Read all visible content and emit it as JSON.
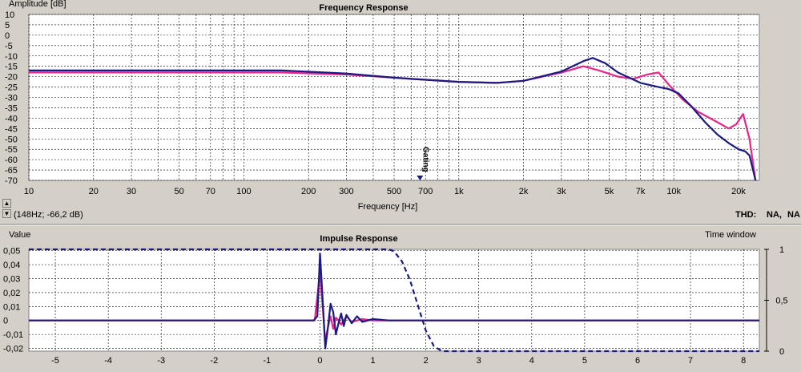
{
  "freq_panel": {
    "title": "Frequency Response",
    "y_axis_label": "Amplitude [dB]",
    "x_axis_label": "Frequency [Hz]",
    "cursor_readout": "(148Hz; -66,2 dB)",
    "marker_label": "Gating",
    "thd_label": "THD:",
    "thd_items": [
      {
        "text": "NA,",
        "color": "#1a1a80"
      },
      {
        "text": "NA",
        "color": "#e8258a"
      }
    ]
  },
  "impulse_panel": {
    "title": "Impulse Response",
    "y_axis_label": "Value",
    "right_axis_label": "Time window"
  },
  "colors": {
    "series_navy": "#1a1a80",
    "series_pink": "#e8258a",
    "grid": "#000000",
    "background": "#ffffff",
    "window_bg": "#d4d0c8"
  },
  "chart_data": [
    {
      "type": "line",
      "title": "Frequency Response",
      "xlabel": "Frequency [Hz]",
      "ylabel": "Amplitude [dB]",
      "xscale": "log",
      "xlim": [
        10,
        25000
      ],
      "ylim": [
        -70,
        10
      ],
      "x_ticks": [
        {
          "value": 10,
          "label": "10"
        },
        {
          "value": 20,
          "label": "20"
        },
        {
          "value": 30,
          "label": "30"
        },
        {
          "value": 50,
          "label": "50"
        },
        {
          "value": 70,
          "label": "70"
        },
        {
          "value": 100,
          "label": "100"
        },
        {
          "value": 200,
          "label": "200"
        },
        {
          "value": 300,
          "label": "300"
        },
        {
          "value": 500,
          "label": "500"
        },
        {
          "value": 700,
          "label": "700"
        },
        {
          "value": 1000,
          "label": "1k"
        },
        {
          "value": 2000,
          "label": "2k"
        },
        {
          "value": 3000,
          "label": "3k"
        },
        {
          "value": 5000,
          "label": "5k"
        },
        {
          "value": 7000,
          "label": "7k"
        },
        {
          "value": 10000,
          "label": "10k"
        },
        {
          "value": 20000,
          "label": "20k"
        }
      ],
      "y_ticks": [
        {
          "value": 10,
          "label": "10"
        },
        {
          "value": 5,
          "label": "5"
        },
        {
          "value": 0,
          "label": "0"
        },
        {
          "value": -5,
          "label": "-5"
        },
        {
          "value": -10,
          "label": "-10"
        },
        {
          "value": -15,
          "label": "-15"
        },
        {
          "value": -20,
          "label": "-20"
        },
        {
          "value": -25,
          "label": "-25"
        },
        {
          "value": -30,
          "label": "-30"
        },
        {
          "value": -35,
          "label": "-35"
        },
        {
          "value": -40,
          "label": "-40"
        },
        {
          "value": -45,
          "label": "-45"
        },
        {
          "value": -50,
          "label": "-50"
        },
        {
          "value": -55,
          "label": "-55"
        },
        {
          "value": -60,
          "label": "-60"
        },
        {
          "value": -65,
          "label": "-65"
        },
        {
          "value": -70,
          "label": "-70"
        }
      ],
      "grid": true,
      "marker_x": 660,
      "series": [
        {
          "color": "#e8258a",
          "points": [
            [
              10,
              -18
            ],
            [
              50,
              -18
            ],
            [
              150,
              -18
            ],
            [
              300,
              -19
            ],
            [
              500,
              -20.5
            ],
            [
              700,
              -21.5
            ],
            [
              1000,
              -22.5
            ],
            [
              1500,
              -23
            ],
            [
              2000,
              -22
            ],
            [
              3000,
              -18
            ],
            [
              3800,
              -15
            ],
            [
              4500,
              -17
            ],
            [
              5500,
              -20
            ],
            [
              6500,
              -21
            ],
            [
              7500,
              -19
            ],
            [
              8500,
              -18
            ],
            [
              9500,
              -24
            ],
            [
              11000,
              -31
            ],
            [
              13000,
              -37
            ],
            [
              16000,
              -42
            ],
            [
              18000,
              -45
            ],
            [
              19500,
              -43
            ],
            [
              21000,
              -38
            ],
            [
              22500,
              -50
            ],
            [
              24000,
              -70
            ]
          ]
        },
        {
          "color": "#1a1a80",
          "points": [
            [
              10,
              -17
            ],
            [
              50,
              -17
            ],
            [
              150,
              -17
            ],
            [
              300,
              -18.5
            ],
            [
              500,
              -20.5
            ],
            [
              700,
              -21.5
            ],
            [
              1000,
              -22.5
            ],
            [
              1500,
              -23
            ],
            [
              2000,
              -22
            ],
            [
              3000,
              -17.5
            ],
            [
              3800,
              -12.5
            ],
            [
              4200,
              -11
            ],
            [
              4800,
              -13.5
            ],
            [
              5500,
              -18
            ],
            [
              7000,
              -23
            ],
            [
              8500,
              -25
            ],
            [
              9500,
              -26
            ],
            [
              10500,
              -28
            ],
            [
              12000,
              -34
            ],
            [
              14000,
              -42
            ],
            [
              16000,
              -48
            ],
            [
              18000,
              -52
            ],
            [
              20000,
              -55
            ],
            [
              21500,
              -56
            ],
            [
              22500,
              -58
            ],
            [
              24000,
              -70
            ]
          ]
        }
      ]
    },
    {
      "type": "line",
      "title": "Impulse Response",
      "ylabel": "Value",
      "y2label": "Time window",
      "xlim": [
        -5.5,
        8.3
      ],
      "ylim": [
        -0.022,
        0.051
      ],
      "y2lim": [
        0,
        1
      ],
      "x_ticks": [
        -5,
        -4,
        -3,
        -2,
        -1,
        0,
        1,
        2,
        3,
        4,
        5,
        6,
        7,
        8
      ],
      "y_ticks": [
        {
          "value": 0.05,
          "label": "0,05"
        },
        {
          "value": 0.04,
          "label": "0,04"
        },
        {
          "value": 0.03,
          "label": "0,03"
        },
        {
          "value": 0.02,
          "label": "0,02"
        },
        {
          "value": 0.01,
          "label": "0,01"
        },
        {
          "value": 0,
          "label": "0"
        },
        {
          "value": -0.01,
          "label": "-0,01"
        },
        {
          "value": -0.02,
          "label": "-0,02"
        }
      ],
      "y2_ticks": [
        {
          "value": 1,
          "label": "1"
        },
        {
          "value": 0.5,
          "label": "0,5"
        },
        {
          "value": 0,
          "label": "0"
        }
      ],
      "grid": true,
      "series": [
        {
          "color": "#e8258a",
          "points": [
            [
              -5.5,
              0
            ],
            [
              -0.1,
              0
            ],
            [
              0,
              0.035
            ],
            [
              0.05,
              0.01
            ],
            [
              0.1,
              -0.015
            ],
            [
              0.15,
              -0.005
            ],
            [
              0.2,
              0.003
            ],
            [
              0.25,
              -0.006
            ],
            [
              0.3,
              0.002
            ],
            [
              0.35,
              0
            ],
            [
              0.4,
              -0.003
            ],
            [
              0.5,
              0.003
            ],
            [
              0.6,
              -0.001
            ],
            [
              0.8,
              0.001
            ],
            [
              1.0,
              0
            ],
            [
              6,
              0
            ],
            [
              8.3,
              0
            ]
          ]
        },
        {
          "color": "#1a1a80",
          "points": [
            [
              -5.5,
              0
            ],
            [
              -0.12,
              0
            ],
            [
              -0.05,
              0.003
            ],
            [
              0,
              0.048
            ],
            [
              0.05,
              0.015
            ],
            [
              0.1,
              -0.02
            ],
            [
              0.15,
              -0.005
            ],
            [
              0.2,
              0.012
            ],
            [
              0.25,
              0.006
            ],
            [
              0.3,
              -0.01
            ],
            [
              0.35,
              -0.002
            ],
            [
              0.4,
              0.005
            ],
            [
              0.45,
              -0.004
            ],
            [
              0.5,
              0.004
            ],
            [
              0.6,
              -0.002
            ],
            [
              0.7,
              0.003
            ],
            [
              0.8,
              -0.001
            ],
            [
              1.0,
              0.001
            ],
            [
              1.3,
              0
            ],
            [
              8.3,
              0
            ]
          ]
        }
      ],
      "window": {
        "color": "#1a1a80",
        "style": "dashed",
        "axis": "y2",
        "points": [
          [
            -5.5,
            1
          ],
          [
            1.3,
            1
          ],
          [
            1.4,
            0.98
          ],
          [
            1.55,
            0.88
          ],
          [
            1.7,
            0.7
          ],
          [
            1.85,
            0.45
          ],
          [
            2.0,
            0.2
          ],
          [
            2.15,
            0.05
          ],
          [
            2.3,
            0
          ],
          [
            8.3,
            0
          ]
        ]
      }
    }
  ]
}
